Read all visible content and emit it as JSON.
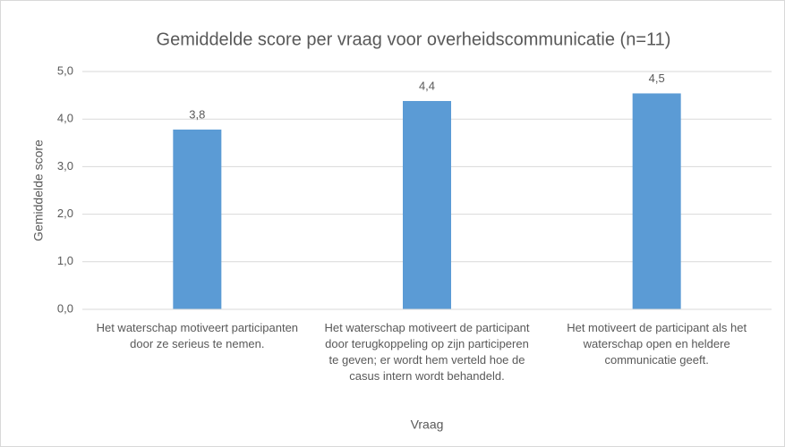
{
  "chart_data": {
    "type": "bar",
    "title": "Gemiddelde score per vraag voor overheidscommunicatie (n=11)",
    "x_label": "Vraag",
    "y_label": "Gemiddelde score",
    "categories": [
      "Het waterschap motiveert participanten door ze serieus te nemen.",
      "Het waterschap motiveert de participant door terugkoppeling op zijn participeren te geven; er wordt hem verteld hoe de casus intern wordt behandeld.",
      "Het motiveert de participant als het waterschap open en heldere communicatie geeft."
    ],
    "values": [
      3.78,
      4.38,
      4.54
    ],
    "value_labels": [
      "3,8",
      "4,4",
      "4,5"
    ],
    "color": "#5b9bd5",
    "ylim": [
      0,
      5
    ],
    "yticks": [
      {
        "value": 0,
        "label": "0,0"
      },
      {
        "value": 1,
        "label": "1,0"
      },
      {
        "value": 2,
        "label": "2,0"
      },
      {
        "value": 3,
        "label": "3,0"
      },
      {
        "value": 4,
        "label": "4,0"
      },
      {
        "value": 5,
        "label": "5,0"
      }
    ],
    "grid": true
  }
}
